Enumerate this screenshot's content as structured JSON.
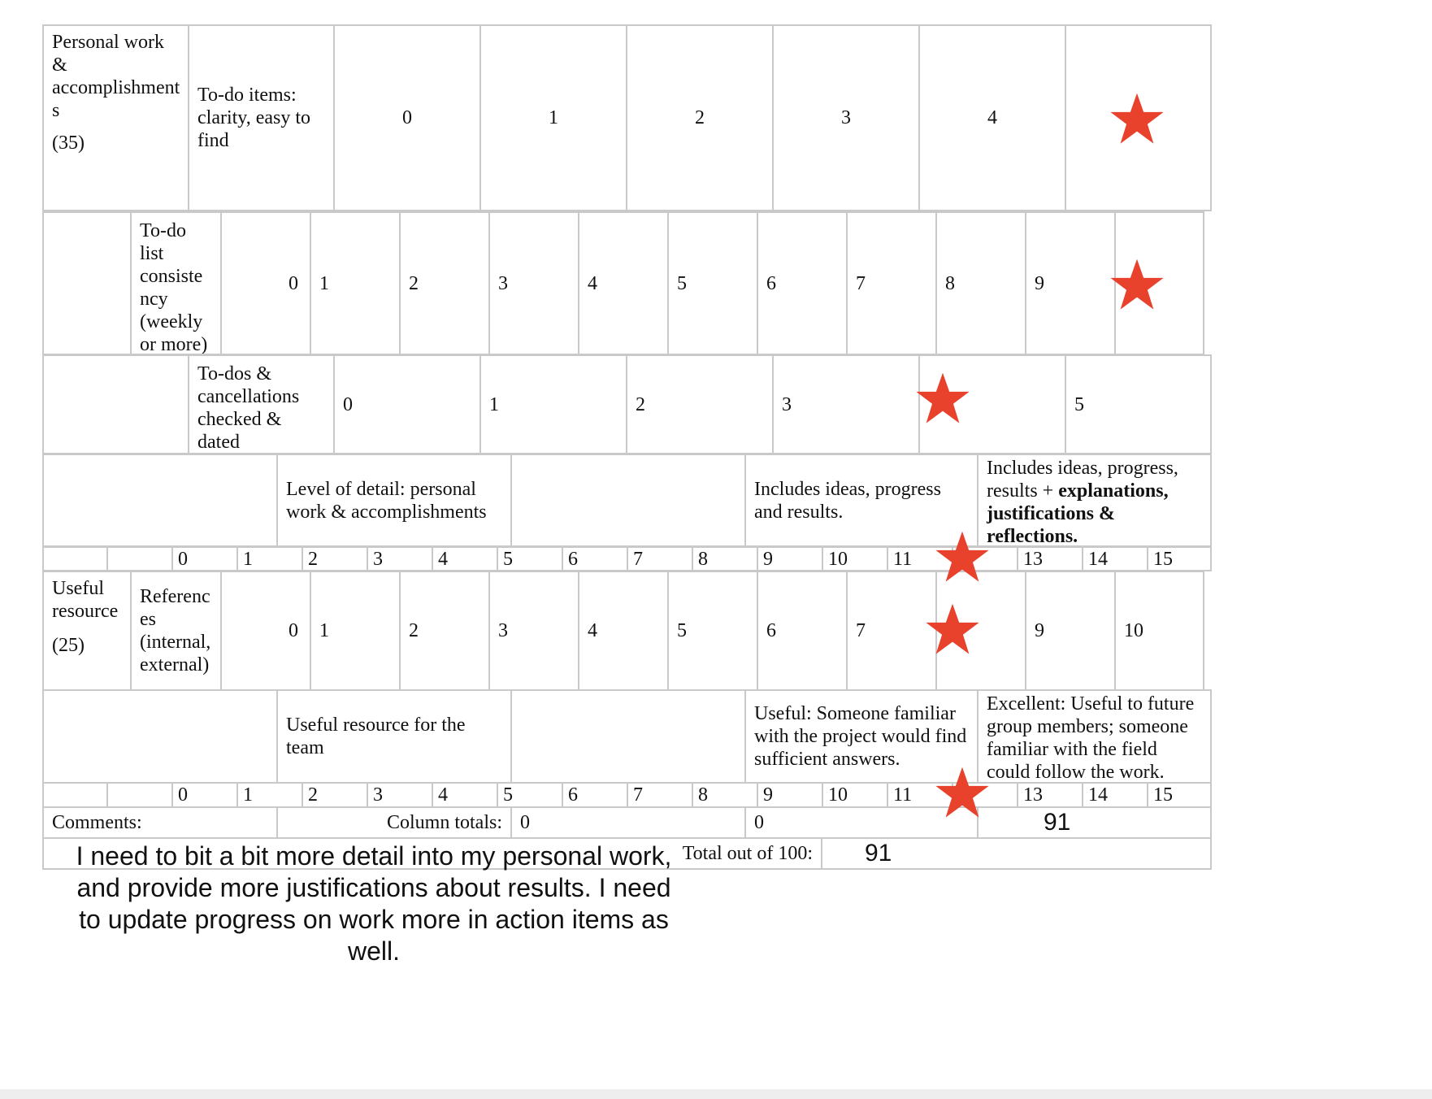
{
  "row1": {
    "category": "Personal work & accomplishment s",
    "points": "(35)",
    "criterion": "To-do items: clarity, easy to find",
    "scale": [
      "0",
      "1",
      "2",
      "3",
      "4"
    ]
  },
  "row2": {
    "criterion": "To-do list consiste ncy (weekly or more)",
    "scale": [
      "0",
      "1",
      "2",
      "3",
      "4",
      "5",
      "6",
      "7",
      "8",
      "9"
    ]
  },
  "row3": {
    "criterion": "To-dos & cancellations checked & dated",
    "scale": [
      "0",
      "1",
      "2",
      "3",
      "5"
    ]
  },
  "row4": {
    "criterion": "Level of detail: personal work & accomplishments",
    "desc_mid": "Includes ideas, progress and results.",
    "desc_high_plain": "Includes ideas, progress, results +",
    "desc_high_bold": "explanations, justifications & reflections.",
    "scale": [
      "0",
      "1",
      "2",
      "3",
      "4",
      "5",
      "6",
      "7",
      "8",
      "9",
      "10",
      "11",
      "13",
      "14",
      "15"
    ]
  },
  "row5": {
    "category": "Useful resource",
    "points": "(25)",
    "criterion": "Referenc es (internal, external)",
    "scale": [
      "0",
      "1",
      "2",
      "3",
      "4",
      "5",
      "6",
      "7",
      "9",
      "10"
    ]
  },
  "row6": {
    "criterion": "Useful resource for the team",
    "desc_mid": "Useful: Someone familiar with the project would find sufficient answers.",
    "desc_high": "Excellent: Useful to future group members; someone familiar with the field could follow the work.",
    "scale": [
      "0",
      "1",
      "2",
      "3",
      "4",
      "5",
      "6",
      "7",
      "8",
      "9",
      "10",
      "11",
      "13",
      "14",
      "15"
    ]
  },
  "totals": {
    "comments_label": "Comments:",
    "column_totals_label": "Column totals:",
    "col_a": "0",
    "col_b": "0",
    "col_c": "91",
    "total_label": "Total out of 100:",
    "total_value": "91"
  },
  "comment_text": "I need to bit a bit more detail into my personal work, and provide more justifications about results. I need to update progress on work more in action items as well.",
  "colors": {
    "star": "#e8412c",
    "border": "#c9c9c9"
  },
  "icons": {
    "mark": "star-icon"
  }
}
